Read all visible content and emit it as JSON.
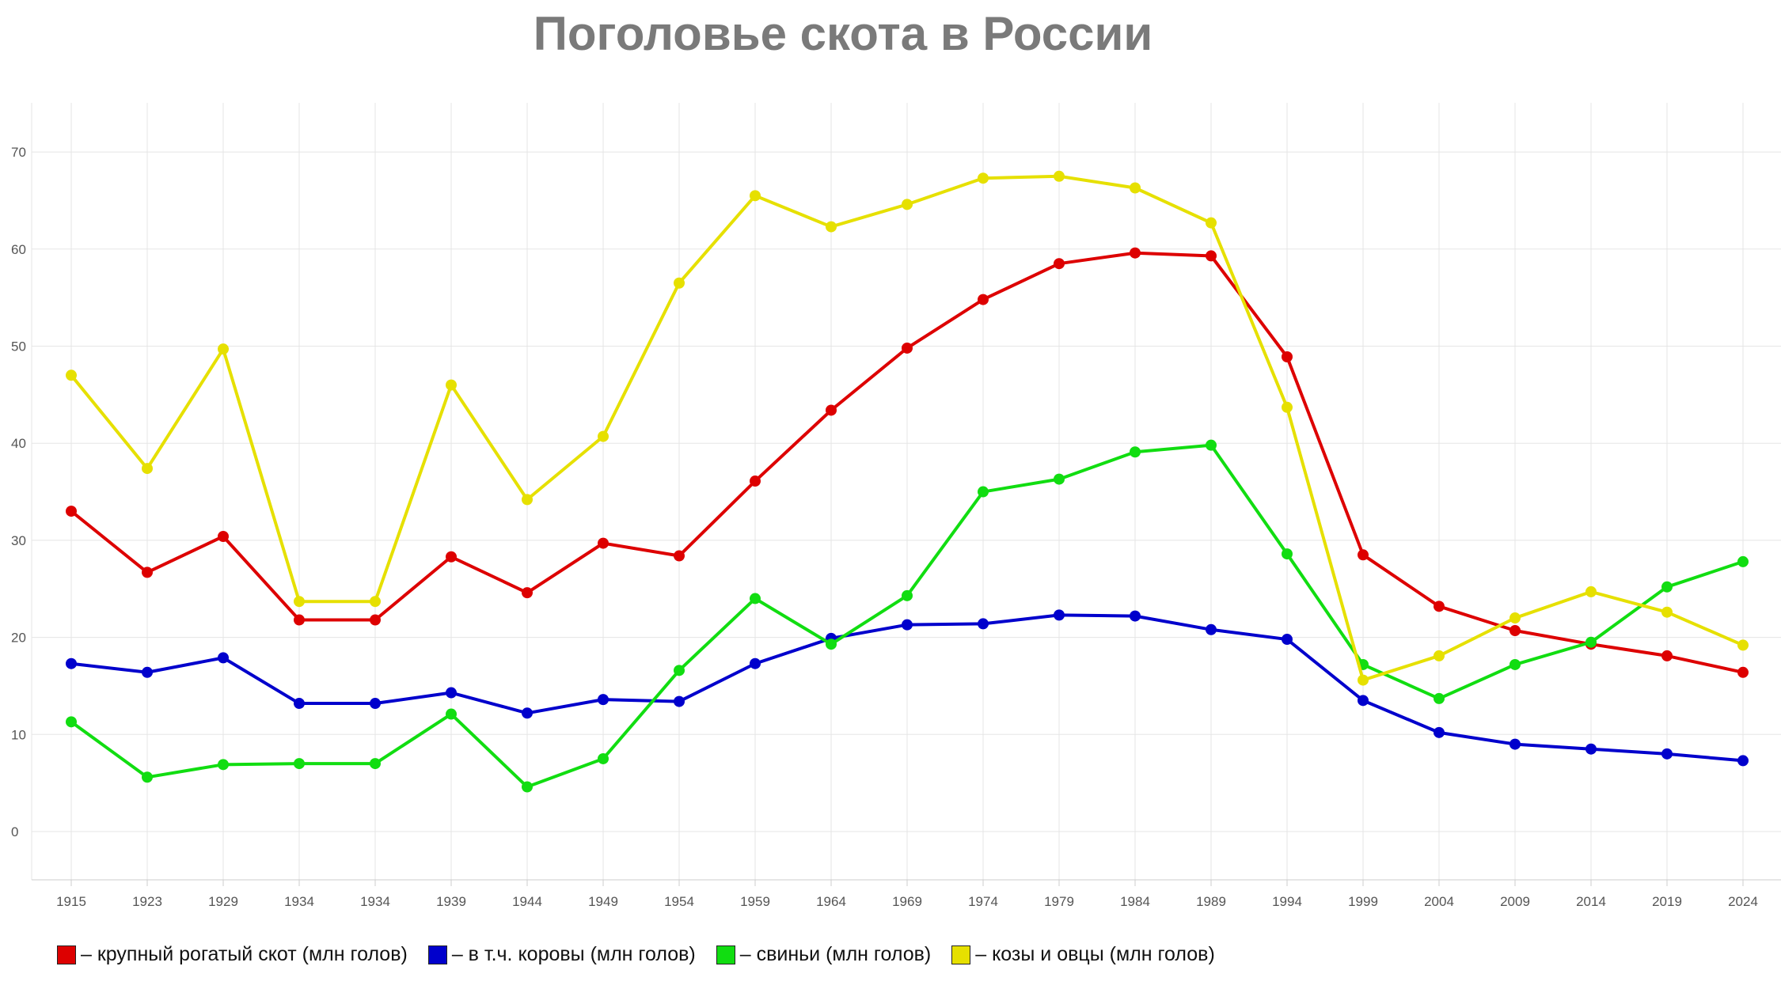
{
  "title": "Поголовье скота в России",
  "colors": {
    "grid": "#e5e5e5",
    "tick": "#555555",
    "axis": "#cccccc"
  },
  "chart_data": {
    "type": "line",
    "title": "Поголовье скота в России",
    "xlabel": "",
    "ylabel": "",
    "categories": [
      "1915",
      "1923",
      "1929",
      "1934",
      "1934",
      "1939",
      "1944",
      "1949",
      "1954",
      "1959",
      "1964",
      "1969",
      "1974",
      "1979",
      "1984",
      "1989",
      "1994",
      "1999",
      "2004",
      "2009",
      "2014",
      "2019",
      "2024"
    ],
    "ylim": [
      -5,
      75
    ],
    "yticks": [
      0,
      10,
      20,
      30,
      40,
      50,
      60,
      70
    ],
    "grid": true,
    "legend": "bottom-left",
    "series": [
      {
        "name": "– крупный рогатый скот (млн голов)",
        "color": "#dd0000",
        "values": [
          33,
          26.7,
          30.4,
          21.8,
          21.8,
          28.3,
          24.6,
          29.7,
          28.4,
          36.1,
          43.4,
          49.8,
          54.8,
          58.5,
          59.6,
          59.3,
          48.9,
          28.5,
          23.2,
          20.7,
          19.3,
          18.1,
          16.4
        ]
      },
      {
        "name": "– в т.ч. коровы (млн голов)",
        "color": "#0000cc",
        "values": [
          17.3,
          16.4,
          17.9,
          13.2,
          13.2,
          14.3,
          12.2,
          13.6,
          13.4,
          17.3,
          19.9,
          21.3,
          21.4,
          22.3,
          22.2,
          20.8,
          19.8,
          13.5,
          10.2,
          9.0,
          8.5,
          8.0,
          7.3
        ]
      },
      {
        "name": "– свиньи (млн голов)",
        "color": "#11dd11",
        "values": [
          11.3,
          5.6,
          6.9,
          7.0,
          7.0,
          12.1,
          4.6,
          7.5,
          16.6,
          24.0,
          19.3,
          24.3,
          35.0,
          36.3,
          39.1,
          39.8,
          28.6,
          17.2,
          13.7,
          17.2,
          19.5,
          25.2,
          27.8
        ]
      },
      {
        "name": "– козы и овцы (млн голов)",
        "color": "#e6e000",
        "values": [
          47.0,
          37.4,
          49.7,
          23.7,
          23.7,
          46.0,
          34.2,
          40.7,
          56.5,
          65.5,
          62.3,
          64.6,
          67.3,
          67.5,
          66.3,
          62.7,
          43.7,
          15.6,
          18.1,
          22.0,
          24.7,
          22.6,
          19.2
        ]
      }
    ]
  }
}
